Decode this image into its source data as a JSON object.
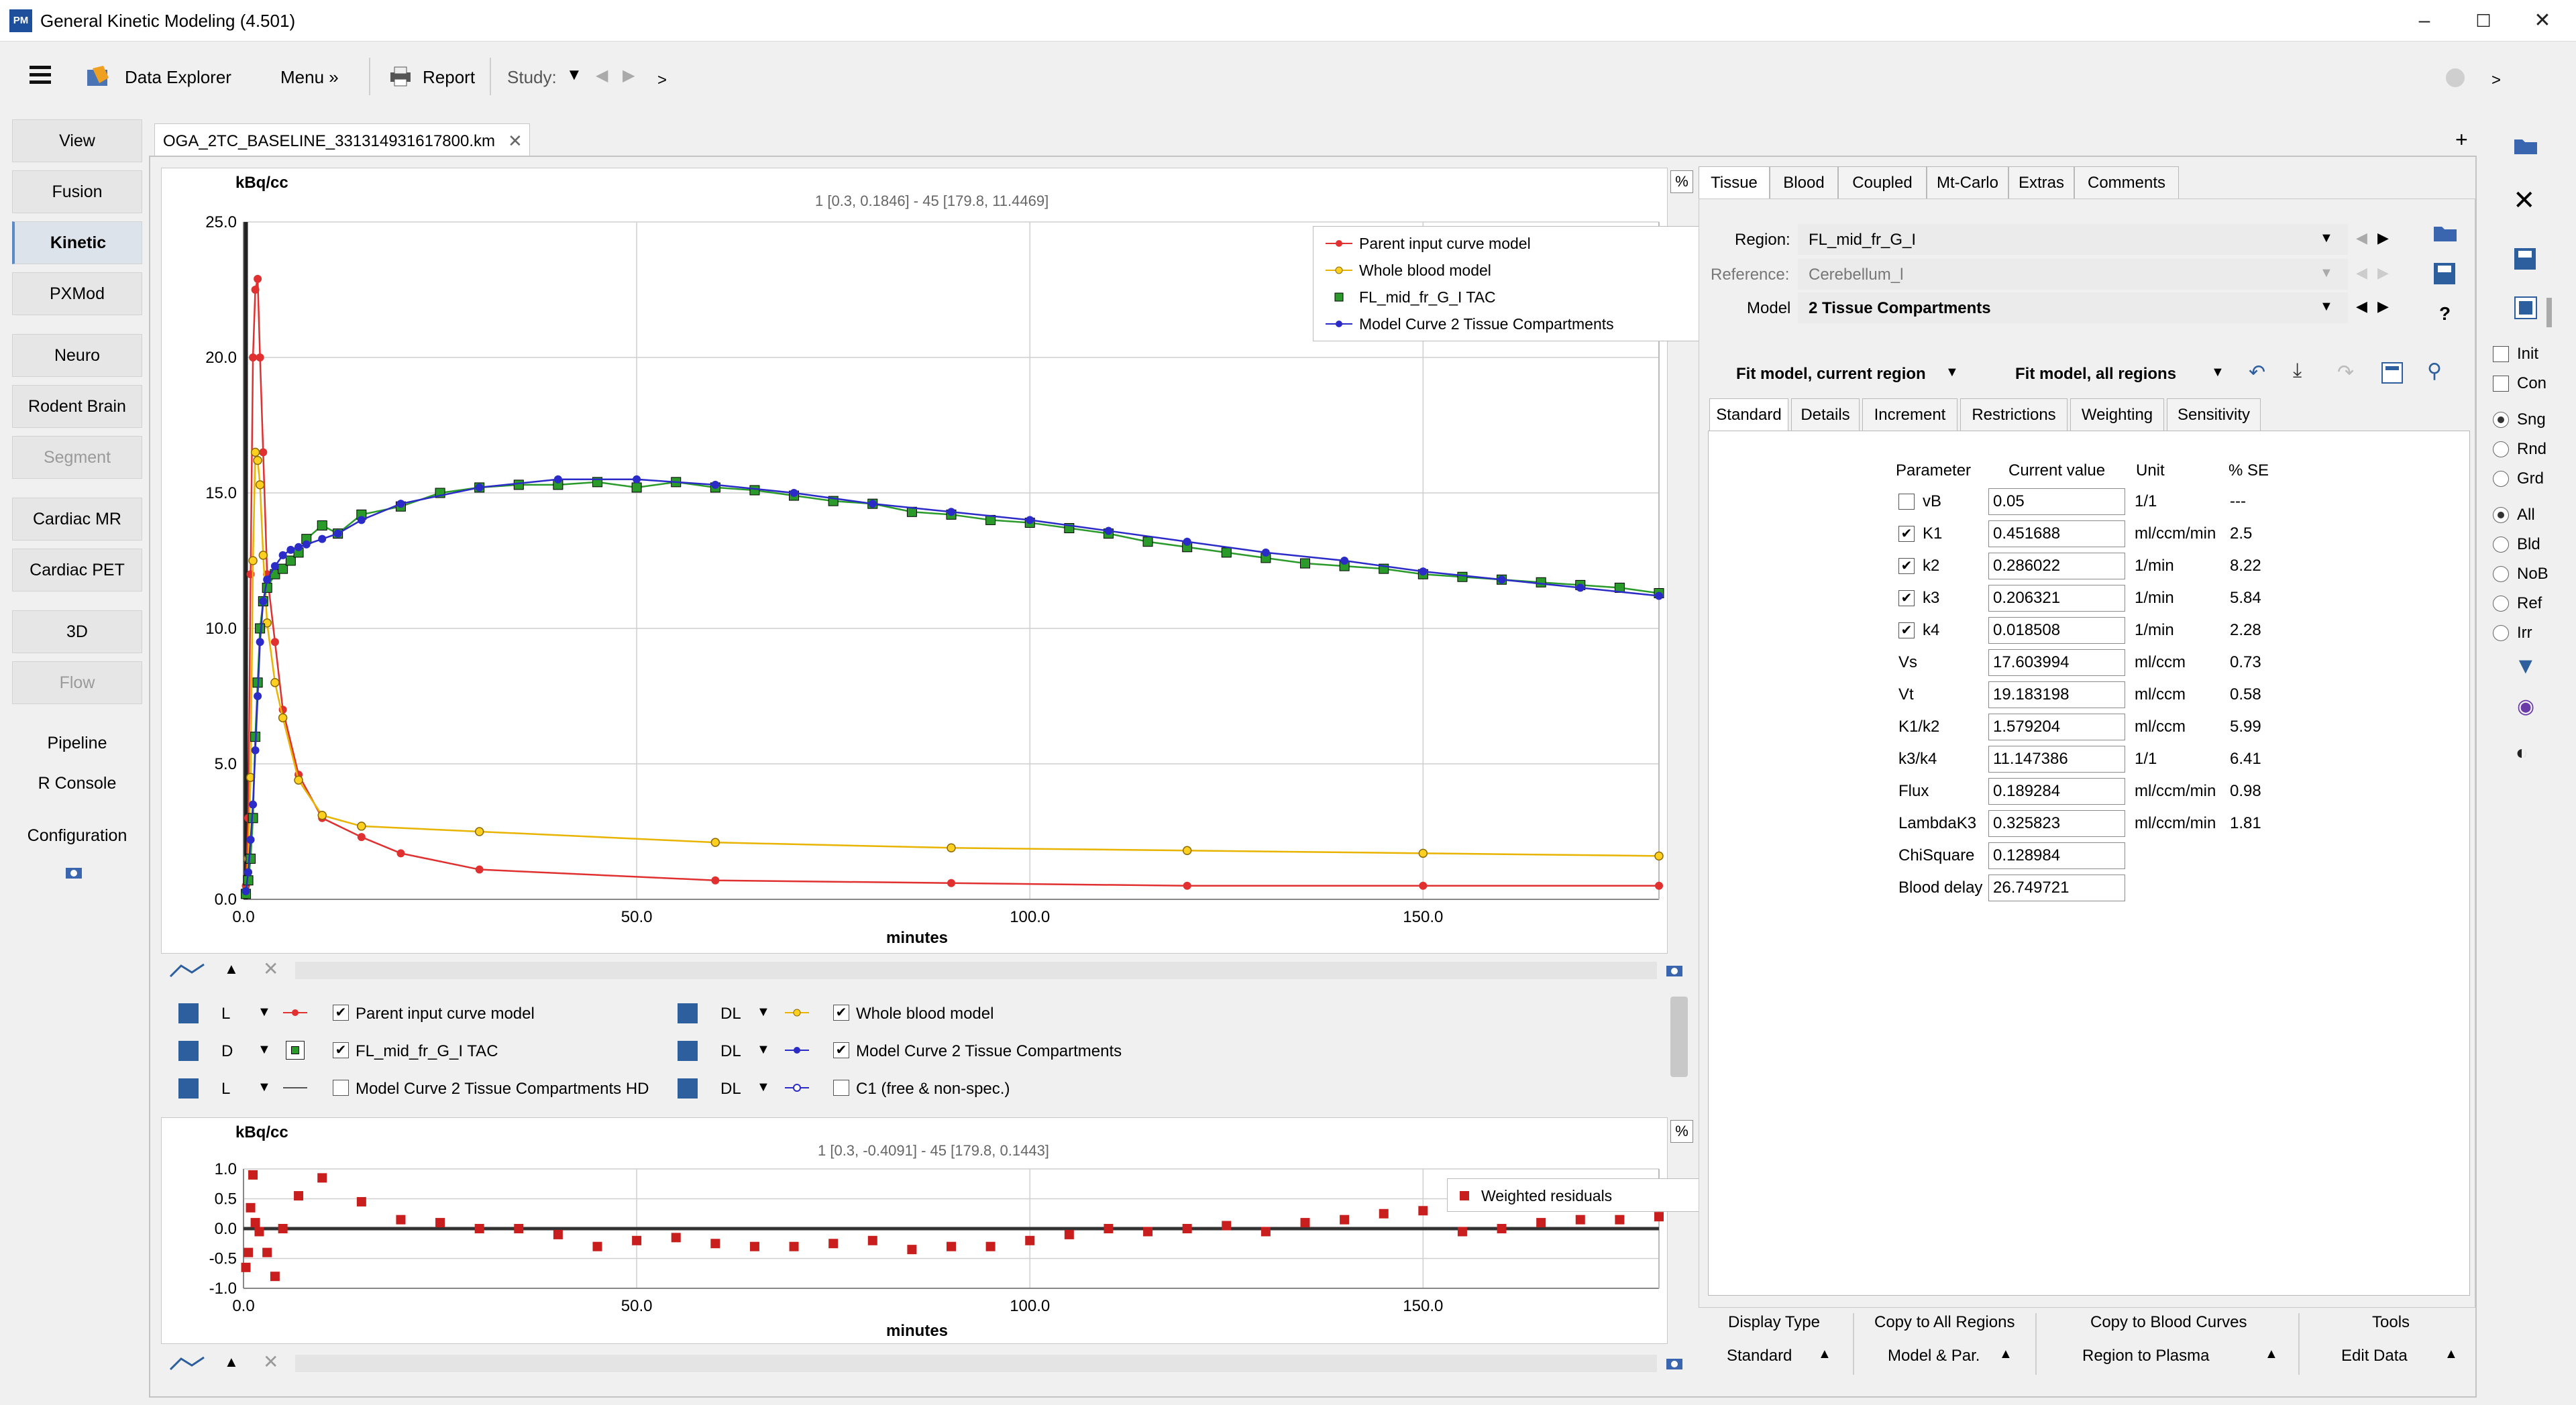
{
  "app": {
    "title": "General Kinetic Modeling (4.501)",
    "icon_text": "PM"
  },
  "toolbar": {
    "data_explorer": "Data Explorer",
    "menu": "Menu »",
    "report": "Report",
    "study_label": "Study:",
    "more": ">"
  },
  "nav": {
    "buttons": [
      "View",
      "Fusion",
      "Kinetic",
      "PXMod",
      "Neuro",
      "Rodent Brain",
      "Segment",
      "Cardiac MR",
      "Cardiac PET",
      "3D",
      "Flow"
    ],
    "links": [
      "Pipeline",
      "R Console",
      "Configuration"
    ]
  },
  "document": {
    "tab": "OGA_2TC_BASELINE_331314931617800.km"
  },
  "main_chart": {
    "ylabel": "kBq/cc",
    "xlabel": "minutes",
    "info": "1 [0.3, 0.1846] - 45 [179.8, 11.4469]",
    "percent_btn": "%"
  },
  "residual_chart": {
    "ylabel": "kBq/cc",
    "xlabel": "minutes",
    "info": "1 [0.3, -0.4091] - 45 [179.8, 0.1443]",
    "percent_btn": "%"
  },
  "chart_data": [
    {
      "type": "line",
      "ylabel": "kBq/cc",
      "xlabel": "minutes",
      "xlim": [
        0,
        180
      ],
      "ylim": [
        0,
        25
      ],
      "xticks": [
        "0.0",
        "50.0",
        "100.0",
        "150.0"
      ],
      "yticks": [
        "0.0",
        "5.0",
        "10.0",
        "15.0",
        "20.0",
        "25.0"
      ],
      "legend_position": "top-right",
      "grid": true,
      "series": [
        {
          "name": "Parent input curve model",
          "color": "#e03030",
          "marker": "circle",
          "x": [
            0.3,
            0.6,
            0.9,
            1.2,
            1.5,
            1.8,
            2.1,
            2.5,
            3,
            4,
            5,
            7,
            10,
            15,
            20,
            30,
            60,
            90,
            120,
            150,
            180
          ],
          "y": [
            0.5,
            3,
            12,
            20,
            22.5,
            22.9,
            20,
            16.5,
            12,
            9.5,
            7,
            4.6,
            3,
            2.3,
            1.7,
            1.1,
            0.7,
            0.6,
            0.5,
            0.5,
            0.5
          ]
        },
        {
          "name": "Whole blood model",
          "color": "#e8b400",
          "marker": "circle",
          "x": [
            0.3,
            0.6,
            0.9,
            1.2,
            1.5,
            1.8,
            2.1,
            2.5,
            3,
            4,
            5,
            7,
            10,
            15,
            30,
            60,
            90,
            120,
            150,
            180
          ],
          "y": [
            0.3,
            1.5,
            4.5,
            12.5,
            16.5,
            16.2,
            15.3,
            12.7,
            10.2,
            8,
            6.7,
            4.4,
            3.1,
            2.7,
            2.5,
            2.1,
            1.9,
            1.8,
            1.7,
            1.6
          ]
        },
        {
          "name": "FL_mid_fr_G_I TAC",
          "color": "#2a9a2a",
          "marker": "square",
          "x": [
            0.3,
            0.6,
            0.9,
            1.2,
            1.5,
            1.8,
            2.1,
            2.5,
            3,
            4,
            5,
            6,
            7,
            8,
            10,
            12,
            15,
            20,
            25,
            30,
            35,
            40,
            45,
            50,
            55,
            60,
            65,
            70,
            75,
            80,
            85,
            90,
            95,
            100,
            105,
            110,
            115,
            120,
            125,
            130,
            135,
            140,
            145,
            150,
            155,
            160,
            165,
            170,
            175,
            180
          ],
          "y": [
            0.2,
            0.7,
            1.5,
            3,
            6,
            8,
            10,
            11,
            11.5,
            12,
            12.2,
            12.5,
            12.8,
            13.3,
            13.8,
            13.5,
            14.2,
            14.5,
            15,
            15.2,
            15.3,
            15.3,
            15.4,
            15.2,
            15.4,
            15.2,
            15.1,
            14.9,
            14.7,
            14.6,
            14.3,
            14.2,
            14,
            13.9,
            13.7,
            13.5,
            13.2,
            13,
            12.8,
            12.6,
            12.4,
            12.3,
            12.2,
            12,
            11.9,
            11.8,
            11.7,
            11.6,
            11.5,
            11.3
          ]
        },
        {
          "name": "Model Curve 2 Tissue Compartments",
          "color": "#2b2bc8",
          "marker": "circle",
          "x": [
            0.3,
            0.6,
            0.9,
            1.2,
            1.5,
            1.8,
            2.1,
            2.5,
            3,
            4,
            5,
            6,
            7,
            8,
            10,
            12,
            15,
            20,
            30,
            40,
            50,
            60,
            70,
            80,
            90,
            100,
            110,
            120,
            130,
            140,
            150,
            160,
            170,
            180
          ],
          "y": [
            0.3,
            1,
            2.2,
            3.5,
            5.5,
            7.5,
            9.5,
            11,
            11.8,
            12.3,
            12.7,
            12.9,
            13,
            13.1,
            13.3,
            13.5,
            14,
            14.6,
            15.2,
            15.5,
            15.5,
            15.3,
            15,
            14.6,
            14.3,
            14,
            13.6,
            13.2,
            12.8,
            12.5,
            12.1,
            11.8,
            11.5,
            11.2
          ]
        }
      ]
    },
    {
      "type": "scatter",
      "ylabel": "kBq/cc",
      "xlabel": "minutes",
      "xlim": [
        0,
        180
      ],
      "ylim": [
        -1,
        1
      ],
      "xticks": [
        "0.0",
        "50.0",
        "100.0",
        "150.0"
      ],
      "yticks": [
        "1.0",
        "0.5",
        "0.0",
        "-0.5",
        "-1.0"
      ],
      "legend_position": "top-right",
      "series": [
        {
          "name": "Weighted residuals",
          "color": "#c81e1e",
          "x": [
            0.3,
            0.6,
            0.9,
            1.2,
            1.5,
            2,
            3,
            4,
            5,
            7,
            10,
            15,
            20,
            25,
            30,
            35,
            40,
            45,
            50,
            55,
            60,
            65,
            70,
            75,
            80,
            85,
            90,
            95,
            100,
            105,
            110,
            115,
            120,
            125,
            130,
            135,
            140,
            145,
            150,
            155,
            160,
            165,
            170,
            175,
            180
          ],
          "y": [
            -0.65,
            -0.4,
            0.35,
            0.9,
            0.1,
            -0.05,
            -0.4,
            -0.8,
            0.0,
            0.55,
            0.85,
            0.45,
            0.15,
            0.1,
            0.0,
            0.0,
            -0.1,
            -0.3,
            -0.2,
            -0.15,
            -0.25,
            -0.3,
            -0.3,
            -0.25,
            -0.2,
            -0.35,
            -0.3,
            -0.3,
            -0.2,
            -0.1,
            0.0,
            -0.05,
            0.0,
            0.05,
            -0.05,
            0.1,
            0.15,
            0.25,
            0.3,
            -0.05,
            0.0,
            0.1,
            0.15,
            0.15,
            0.2
          ]
        }
      ]
    }
  ],
  "curve_list": {
    "rows": [
      {
        "left": {
          "mode": "L",
          "checked": true,
          "label": "Parent input curve model",
          "symbol": "red-dot"
        },
        "right": {
          "mode": "DL",
          "checked": true,
          "label": "Whole blood model",
          "symbol": "yellow-dot"
        }
      },
      {
        "left": {
          "mode": "D",
          "checked": true,
          "label": "FL_mid_fr_G_I TAC",
          "symbol": "green-square"
        },
        "right": {
          "mode": "DL",
          "checked": true,
          "label": "Model Curve 2 Tissue Compartments",
          "symbol": "blue-dot"
        }
      },
      {
        "left": {
          "mode": "L",
          "checked": false,
          "label": "Model Curve 2 Tissue Compartments HD",
          "symbol": "line"
        },
        "right": {
          "mode": "DL",
          "checked": false,
          "label": "C1 (free & non-spec.)",
          "symbol": "open-dot"
        }
      }
    ]
  },
  "right_panel": {
    "tabs": [
      "Tissue",
      "Blood",
      "Coupled",
      "Mt-Carlo",
      "Extras",
      "Comments"
    ],
    "region_label": "Region:",
    "region_value": "FL_mid_fr_G_I",
    "reference_label": "Reference:",
    "reference_value": "Cerebellum_l",
    "model_label": "Model",
    "model_value": "2 Tissue Compartments",
    "fit_current": "Fit model, current region",
    "fit_all": "Fit model, all regions",
    "subtabs": [
      "Standard",
      "Details",
      "Increment",
      "Restrictions",
      "Weighting",
      "Sensitivity"
    ],
    "param_headers": [
      "Parameter",
      "Current value",
      "Unit",
      "% SE"
    ],
    "params": [
      {
        "name": "vB",
        "value": "0.05",
        "unit": "1/1",
        "se": "---",
        "cb": true,
        "checked": false
      },
      {
        "name": "K1",
        "value": "0.451688",
        "unit": "ml/ccm/min",
        "se": "2.5",
        "cb": true,
        "checked": true
      },
      {
        "name": "k2",
        "value": "0.286022",
        "unit": "1/min",
        "se": "8.22",
        "cb": true,
        "checked": true
      },
      {
        "name": "k3",
        "value": "0.206321",
        "unit": "1/min",
        "se": "5.84",
        "cb": true,
        "checked": true
      },
      {
        "name": "k4",
        "value": "0.018508",
        "unit": "1/min",
        "se": "2.28",
        "cb": true,
        "checked": true
      },
      {
        "name": "Vs",
        "value": "17.603994",
        "unit": "ml/ccm",
        "se": "0.73",
        "cb": false
      },
      {
        "name": "Vt",
        "value": "19.183198",
        "unit": "ml/ccm",
        "se": "0.58",
        "cb": false
      },
      {
        "name": "K1/k2",
        "value": "1.579204",
        "unit": "ml/ccm",
        "se": "5.99",
        "cb": false
      },
      {
        "name": "k3/k4",
        "value": "11.147386",
        "unit": "1/1",
        "se": "6.41",
        "cb": false
      },
      {
        "name": "Flux",
        "value": "0.189284",
        "unit": "ml/ccm/min",
        "se": "0.98",
        "cb": false
      },
      {
        "name": "LambdaK3",
        "value": "0.325823",
        "unit": "ml/ccm/min",
        "se": "1.81",
        "cb": false
      },
      {
        "name": "ChiSquare",
        "value": "0.128984",
        "unit": "",
        "se": "",
        "cb": false
      },
      {
        "name": "Blood delay",
        "value": "26.749721",
        "unit": "",
        "se": "",
        "cb": false
      }
    ],
    "help": "?"
  },
  "bottom_actions": [
    {
      "label": "Display Type",
      "value": "Standard"
    },
    {
      "label": "Copy to All Regions",
      "value": "Model & Par."
    },
    {
      "label": "Copy to Blood Curves",
      "value": "Region to Plasma"
    },
    {
      "label": "Tools",
      "value": "Edit Data"
    }
  ],
  "side_options": {
    "checks": [
      "Init",
      "Con"
    ],
    "radios1": [
      "Sng",
      "Rnd",
      "Grd"
    ],
    "radios2": [
      "All",
      "Bld",
      "NoB",
      "Ref",
      "Irr"
    ]
  }
}
